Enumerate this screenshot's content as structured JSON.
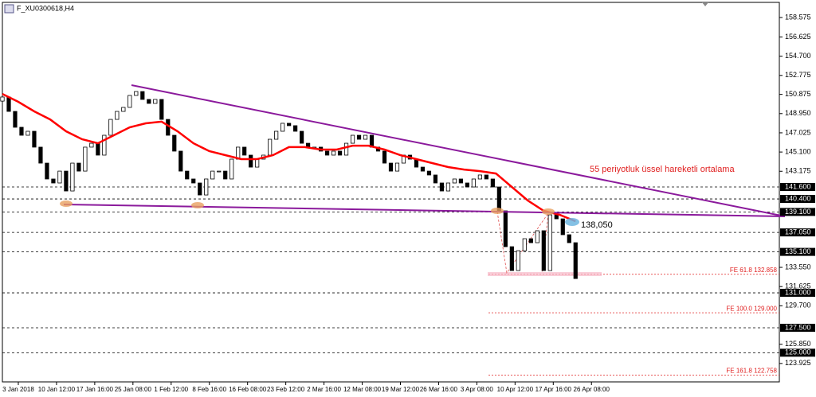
{
  "chart_data": {
    "type": "candlestick",
    "title": "F_XU0300618,H4",
    "annotations": [
      "55 periyotluk üssel hareketli ortalama",
      "138,050"
    ],
    "xlim": [
      0,
      122
    ],
    "ylim": [
      121.92,
      159.69
    ],
    "yticks": [
      158.575,
      156.625,
      {
        "value": 154.7,
        "label": "154.700"
      },
      152.775,
      150.875,
      {
        "value": 148.95,
        "label": "148.950"
      },
      147.025,
      {
        "value": 145.1,
        "label": "145.100"
      },
      143.175,
      {
        "value": 133.55,
        "label": "133.550"
      },
      131.625,
      {
        "value": 129.7,
        "label": "129.700"
      },
      {
        "value": 125.85,
        "label": "125.850"
      },
      123.925
    ],
    "xticks": [
      {
        "value": 2.5,
        "label": "3 Jan 2018"
      },
      {
        "value": 8.5,
        "label": "10 Jan 12:00"
      },
      {
        "value": 14.5,
        "label": "17 Jan 16:00"
      },
      {
        "value": 20.5,
        "label": "25 Jan 08:00"
      },
      {
        "value": 26.5,
        "label": "1 Feb 12:00"
      },
      {
        "value": 32.5,
        "label": "8 Feb 16:00"
      },
      {
        "value": 38.5,
        "label": "16 Feb 08:00"
      },
      {
        "value": 44.5,
        "label": "23 Feb 12:00"
      },
      {
        "value": 50.5,
        "label": "2 Mar 16:00"
      },
      {
        "value": 56.5,
        "label": "12 Mar 08:00"
      },
      {
        "value": 62.5,
        "label": "19 Mar 12:00"
      },
      {
        "value": 68.5,
        "label": "26 Mar 16:00"
      },
      {
        "value": 74.5,
        "label": "3 Apr 08:00"
      },
      {
        "value": 80.5,
        "label": "10 Apr 12:00"
      },
      {
        "value": 86.5,
        "label": "17 Apr 16:00"
      },
      {
        "value": 92.5,
        "label": "26 Apr 08:00"
      }
    ],
    "levels": [
      {
        "value": 141.6,
        "label": "141.600"
      },
      {
        "value": 140.4,
        "label": "140.400"
      },
      {
        "value": 139.1,
        "label": "139.100"
      },
      {
        "value": 137.05,
        "label": "137.050"
      },
      {
        "value": 135.1,
        "label": "135.100"
      },
      {
        "value": 131,
        "label": "131.000"
      },
      {
        "value": 127.5,
        "label": "127.500"
      },
      {
        "value": 125,
        "label": "125.000"
      }
    ],
    "fe_levels": [
      {
        "value": 132.858,
        "label": "FE 61.8 132.858"
      },
      {
        "value": 129,
        "label": "FE 100.0 129.000"
      },
      {
        "value": 122.758,
        "label": "FE 161.8 122.758"
      }
    ],
    "x": [
      0,
      1,
      2,
      3,
      4,
      5,
      6,
      7,
      8,
      9,
      10,
      11,
      12,
      13,
      14,
      15,
      16,
      17,
      18,
      19,
      20,
      21,
      22,
      23,
      24,
      25,
      26,
      27,
      28,
      29,
      30,
      31,
      32,
      33,
      34,
      35,
      36,
      37,
      38,
      39,
      40,
      41,
      42,
      43,
      44,
      45,
      46,
      47,
      48,
      49,
      50,
      51,
      52,
      53,
      54,
      55,
      56,
      57,
      58,
      59,
      60,
      61,
      62,
      63,
      64,
      65,
      66,
      67,
      68,
      69,
      70,
      71,
      72,
      73,
      74,
      75,
      76,
      77,
      78,
      79,
      80,
      81,
      82,
      83,
      84,
      85,
      86,
      87,
      88,
      89,
      90
    ],
    "open": [
      150.2,
      150.61,
      149.17,
      147.58,
      146.78,
      147.18,
      145.59,
      143.99,
      142.4,
      142.0,
      143.19,
      141.2,
      143.99,
      143.19,
      145.59,
      145.98,
      144.79,
      146.78,
      148.37,
      149.17,
      149.57,
      150.77,
      151.16,
      150.37,
      149.97,
      150.37,
      148.37,
      146.78,
      145.19,
      143.19,
      142.4,
      142.0,
      140.8,
      142.4,
      143.19,
      143.19,
      142.4,
      144.39,
      145.59,
      144.79,
      143.59,
      144.39,
      144.79,
      146.38,
      147.18,
      147.98,
      147.74,
      147.18,
      145.98,
      145.59,
      145.59,
      145.19,
      144.79,
      145.19,
      144.79,
      145.98,
      146.78,
      146.38,
      146.78,
      145.59,
      145.19,
      143.99,
      143.19,
      143.99,
      144.79,
      144.39,
      143.59,
      143.19,
      142.8,
      142.0,
      141.2,
      142.0,
      142.4,
      142.0,
      141.6,
      142.4,
      142.8,
      142.4,
      141.6,
      139.21,
      135.62,
      133.23,
      135.22,
      136.42,
      136.02,
      137.22,
      133.23,
      138.81,
      138.41,
      136.82,
      136.02
    ],
    "close": [
      150.61,
      149.17,
      147.58,
      146.78,
      147.18,
      145.59,
      143.99,
      142.4,
      142.0,
      143.19,
      141.2,
      143.99,
      143.19,
      145.59,
      145.98,
      144.79,
      146.78,
      148.37,
      149.17,
      149.57,
      150.77,
      151.16,
      150.37,
      149.97,
      150.37,
      148.37,
      146.78,
      145.19,
      143.19,
      142.4,
      142.0,
      140.8,
      142.4,
      143.19,
      143.19,
      142.4,
      144.39,
      145.59,
      144.79,
      143.59,
      144.39,
      144.79,
      146.38,
      147.18,
      147.98,
      147.74,
      147.18,
      145.98,
      145.59,
      145.59,
      145.19,
      144.79,
      145.19,
      144.79,
      145.98,
      146.78,
      146.38,
      146.78,
      145.59,
      145.19,
      143.99,
      143.19,
      143.99,
      144.79,
      144.39,
      143.59,
      143.19,
      142.8,
      142.0,
      141.2,
      142.0,
      142.4,
      142.0,
      141.6,
      142.4,
      142.8,
      142.4,
      141.6,
      139.21,
      135.62,
      133.23,
      135.22,
      136.42,
      136.02,
      137.22,
      133.23,
      138.81,
      138.41,
      136.82,
      136.02,
      132.43
    ],
    "ema": {
      "color": "#ff0000",
      "x": [
        0,
        2.5,
        5,
        7.5,
        10,
        12.5,
        15,
        17.5,
        20,
        22.5,
        25,
        27.5,
        30,
        32.5,
        35,
        37.5,
        40,
        42.5,
        45,
        47.5,
        50,
        52.5,
        55,
        57.5,
        60,
        62.5,
        65,
        67.5,
        70,
        72.5,
        75,
        77.5,
        80,
        82.5,
        85,
        87.5,
        90
      ],
      "values": [
        150.92,
        150.13,
        149.17,
        148.37,
        147.18,
        146.38,
        145.98,
        146.78,
        147.58,
        147.98,
        148.14,
        147.18,
        145.98,
        145.19,
        144.79,
        144.39,
        144.39,
        144.79,
        145.59,
        145.59,
        145.35,
        145.35,
        145.74,
        145.74,
        145.35,
        144.79,
        144.39,
        143.99,
        143.59,
        143.35,
        143.19,
        142.95,
        141.6,
        140.25,
        139.21,
        138.81,
        138.17
      ]
    }
  }
}
